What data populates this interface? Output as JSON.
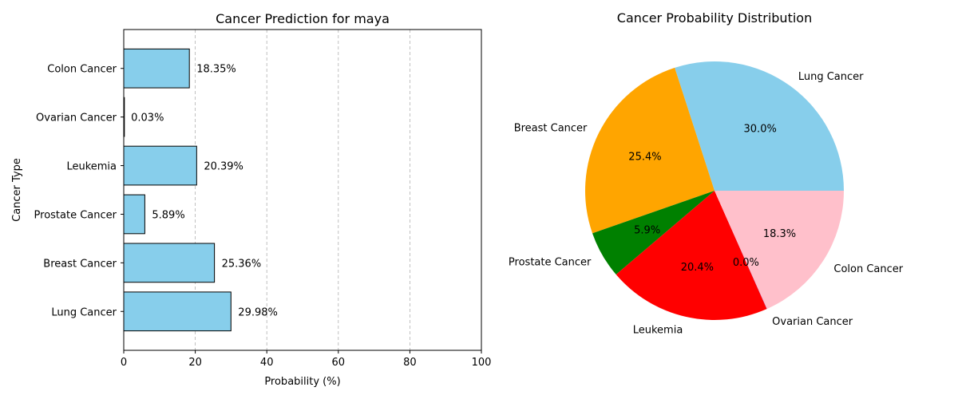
{
  "chart_data": [
    {
      "type": "bar",
      "orientation": "horizontal",
      "title": "Cancer Prediction for maya",
      "xlabel": "Probability (%)",
      "ylabel": "Cancer Type",
      "xlim": [
        0,
        100
      ],
      "x_ticks": [
        "0",
        "20",
        "40",
        "60",
        "80",
        "100"
      ],
      "categories": [
        "Lung Cancer",
        "Breast Cancer",
        "Prostate Cancer",
        "Leukemia",
        "Ovarian Cancer",
        "Colon Cancer"
      ],
      "values": [
        29.98,
        25.36,
        5.89,
        20.39,
        0.03,
        18.35
      ],
      "data_labels": [
        "29.98%",
        "25.36%",
        "5.89%",
        "20.39%",
        "0.03%",
        "18.35%"
      ],
      "bar_color": "#87ceeb",
      "grid": "vertical dashed"
    },
    {
      "type": "pie",
      "title": "Cancer Probability Distribution",
      "categories": [
        "Lung Cancer",
        "Breast Cancer",
        "Prostate Cancer",
        "Leukemia",
        "Ovarian Cancer",
        "Colon Cancer"
      ],
      "values": [
        29.98,
        25.36,
        5.89,
        20.39,
        0.03,
        18.35
      ],
      "pct_labels": [
        "30.0%",
        "25.4%",
        "5.9%",
        "20.4%",
        "0.0%",
        "18.3%"
      ],
      "colors": [
        "#87ceeb",
        "#ffa500",
        "#008000",
        "#ff0000",
        "#800080",
        "#ffc0cb"
      ]
    }
  ]
}
